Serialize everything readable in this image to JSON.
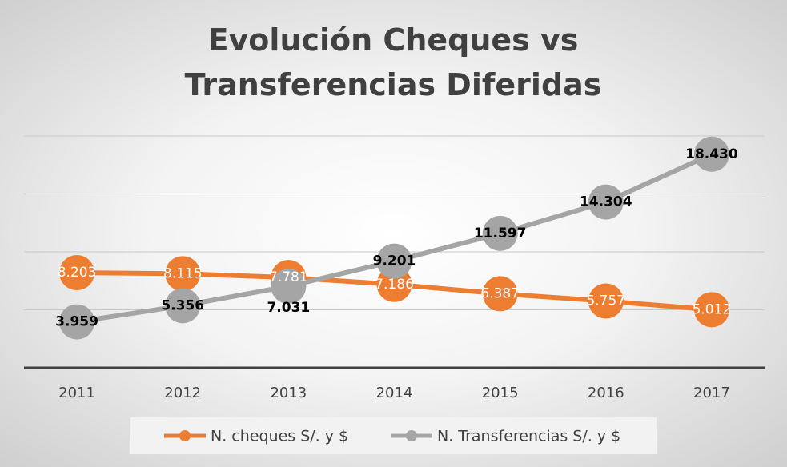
{
  "chart_data": {
    "type": "line",
    "title": "Evolución Cheques vs Transferencias Diferidas",
    "categories": [
      "2011",
      "2012",
      "2013",
      "2014",
      "2015",
      "2016",
      "2017"
    ],
    "series": [
      {
        "name": "N. cheques S/. y $",
        "color": "#ed7d31",
        "values": [
          8203,
          8115,
          7781,
          7186,
          6387,
          5757,
          5012
        ],
        "value_labels": [
          "8.203",
          "8.115",
          "7.781",
          "7.186",
          "6.387",
          "5.757",
          "5.012"
        ]
      },
      {
        "name": "N. Transferencias S/. y $",
        "color": "#a5a5a5",
        "values": [
          3959,
          5356,
          7031,
          9201,
          11597,
          14304,
          18430
        ],
        "value_labels": [
          "3.959",
          "5.356",
          "7.031",
          "9.201",
          "11.597",
          "14.304",
          "18.430"
        ]
      }
    ],
    "ylim": [
      0,
      20000
    ],
    "yticks": [
      0,
      5000,
      10000,
      15000,
      20000
    ],
    "grid": true,
    "legend": "bottom"
  }
}
